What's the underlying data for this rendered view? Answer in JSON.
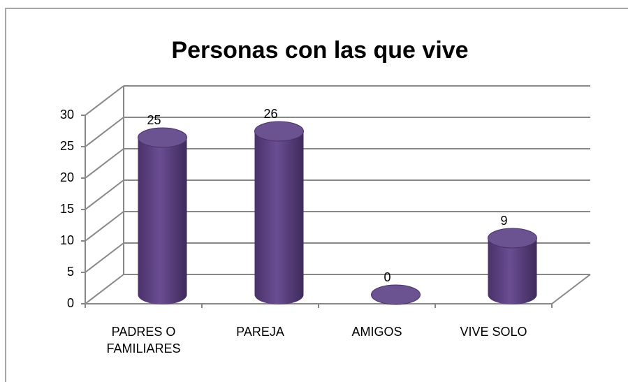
{
  "chart_data": {
    "type": "bar",
    "title": "Personas con las que vive",
    "categories": [
      "PADRES O FAMILIARES",
      "PAREJA",
      "AMIGOS",
      "VIVE SOLO"
    ],
    "values": [
      25,
      26,
      0,
      9
    ],
    "color": "#5b3f80",
    "ylim": [
      0,
      30
    ],
    "yticks": [
      0,
      5,
      10,
      15,
      20,
      25,
      30
    ],
    "grid": true
  }
}
